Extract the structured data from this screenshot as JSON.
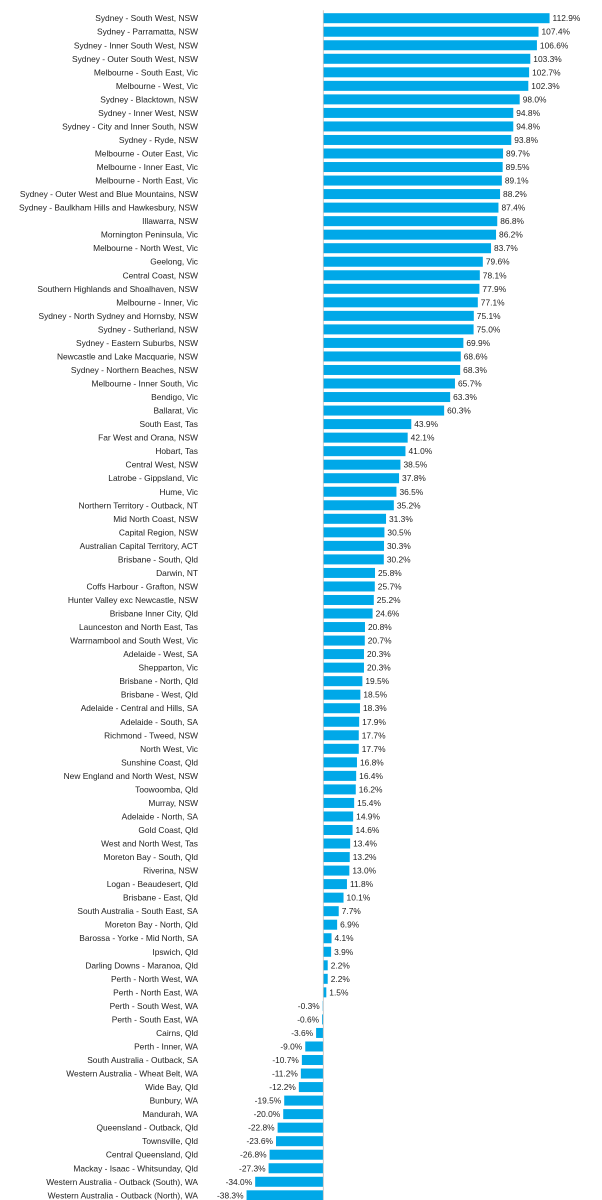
{
  "chart_data": {
    "type": "bar",
    "orientation": "horizontal",
    "bar_color": "#00A8E8",
    "grid": false,
    "legend": "none",
    "xlim": [
      -40,
      120
    ],
    "categories": [
      "Sydney - South West, NSW",
      "Sydney - Parramatta, NSW",
      "Sydney - Inner South West, NSW",
      "Sydney - Outer South West, NSW",
      "Melbourne - South East, Vic",
      "Melbourne - West, Vic",
      "Sydney - Blacktown, NSW",
      "Sydney - Inner West, NSW",
      "Sydney - City and Inner South, NSW",
      "Sydney - Ryde, NSW",
      "Melbourne - Outer East, Vic",
      "Melbourne - Inner East, Vic",
      "Melbourne - North East, Vic",
      "Sydney - Outer West and Blue Mountains, NSW",
      "Sydney - Baulkham Hills and Hawkesbury, NSW",
      "Illawarra, NSW",
      "Mornington Peninsula, Vic",
      "Melbourne - North West, Vic",
      "Geelong, Vic",
      "Central Coast, NSW",
      "Southern Highlands and Shoalhaven, NSW",
      "Melbourne - Inner, Vic",
      "Sydney - North Sydney and Hornsby, NSW",
      "Sydney - Sutherland, NSW",
      "Sydney - Eastern Suburbs, NSW",
      "Newcastle and Lake Macquarie, NSW",
      "Sydney - Northern Beaches, NSW",
      "Melbourne - Inner South, Vic",
      "Bendigo, Vic",
      "Ballarat, Vic",
      "South East, Tas",
      "Far West and Orana, NSW",
      "Hobart, Tas",
      "Central West, NSW",
      "Latrobe - Gippsland, Vic",
      "Hume, Vic",
      "Northern Territory - Outback, NT",
      "Mid North Coast, NSW",
      "Capital Region, NSW",
      "Australian Capital Territory, ACT",
      "Brisbane - South, Qld",
      "Darwin, NT",
      "Coffs Harbour - Grafton, NSW",
      "Hunter Valley exc Newcastle, NSW",
      "Brisbane Inner City, Qld",
      "Launceston and North East, Tas",
      "Warrnambool and South West, Vic",
      "Adelaide - West, SA",
      "Shepparton, Vic",
      "Brisbane - North, Qld",
      "Brisbane - West, Qld",
      "Adelaide - Central and Hills, SA",
      "Adelaide - South, SA",
      "Richmond - Tweed, NSW",
      "North West, Vic",
      "Sunshine Coast, Qld",
      "New England and North West, NSW",
      "Toowoomba, Qld",
      "Murray, NSW",
      "Adelaide - North, SA",
      "Gold Coast, Qld",
      "West and North West, Tas",
      "Moreton Bay - South, Qld",
      "Riverina, NSW",
      "Logan - Beaudesert, Qld",
      "Brisbane - East, Qld",
      "South Australia - South East, SA",
      "Moreton Bay - North, Qld",
      "Barossa - Yorke - Mid North, SA",
      "Ipswich, Qld",
      "Darling Downs - Maranoa, Qld",
      "Perth - North West, WA",
      "Perth - North East, WA",
      "Perth - South West, WA",
      "Perth - South East, WA",
      "Cairns, Qld",
      "Perth - Inner, WA",
      "South Australia - Outback, SA",
      "Western Australia - Wheat Belt, WA",
      "Wide Bay, Qld",
      "Bunbury, WA",
      "Mandurah, WA",
      "Queensland - Outback, Qld",
      "Townsville, Qld",
      "Central Queensland, Qld",
      "Mackay - Isaac - Whitsunday, Qld",
      "Western Australia - Outback (South), WA",
      "Western Australia - Outback (North), WA"
    ],
    "values": [
      112.9,
      107.4,
      106.6,
      103.3,
      102.7,
      102.3,
      98.0,
      94.8,
      94.8,
      93.8,
      89.7,
      89.5,
      89.1,
      88.2,
      87.4,
      86.8,
      86.2,
      83.7,
      79.6,
      78.1,
      77.9,
      77.1,
      75.1,
      75.0,
      69.9,
      68.6,
      68.3,
      65.7,
      63.3,
      60.3,
      43.9,
      42.1,
      41.0,
      38.5,
      37.8,
      36.5,
      35.2,
      31.3,
      30.5,
      30.3,
      30.2,
      25.8,
      25.7,
      25.2,
      24.6,
      20.8,
      20.7,
      20.3,
      20.3,
      19.5,
      18.5,
      18.3,
      17.9,
      17.7,
      17.7,
      16.8,
      16.4,
      16.2,
      15.4,
      14.9,
      14.6,
      13.4,
      13.2,
      13.0,
      11.8,
      10.1,
      7.7,
      6.9,
      4.1,
      3.9,
      2.2,
      2.2,
      1.5,
      -0.3,
      -0.6,
      -3.6,
      -9.0,
      -10.7,
      -11.2,
      -12.2,
      -19.5,
      -20.0,
      -22.8,
      -23.6,
      -26.8,
      -27.3,
      -34.0,
      -38.3
    ],
    "value_labels": [
      "112.9%",
      "107.4%",
      "106.6%",
      "103.3%",
      "102.7%",
      "102.3%",
      "98.0%",
      "94.8%",
      "94.8%",
      "93.8%",
      "89.7%",
      "89.5%",
      "89.1%",
      "88.2%",
      "87.4%",
      "86.8%",
      "86.2%",
      "83.7%",
      "79.6%",
      "78.1%",
      "77.9%",
      "77.1%",
      "75.1%",
      "75.0%",
      "69.9%",
      "68.6%",
      "68.3%",
      "65.7%",
      "63.3%",
      "60.3%",
      "43.9%",
      "42.1%",
      "41.0%",
      "38.5%",
      "37.8%",
      "36.5%",
      "35.2%",
      "31.3%",
      "30.5%",
      "30.3%",
      "30.2%",
      "25.8%",
      "25.7%",
      "25.2%",
      "24.6%",
      "20.8%",
      "20.7%",
      "20.3%",
      "20.3%",
      "19.5%",
      "18.5%",
      "18.3%",
      "17.9%",
      "17.7%",
      "17.7%",
      "16.8%",
      "16.4%",
      "16.2%",
      "15.4%",
      "14.9%",
      "14.6%",
      "13.4%",
      "13.2%",
      "13.0%",
      "11.8%",
      "10.1%",
      "7.7%",
      "6.9%",
      "4.1%",
      "3.9%",
      "2.2%",
      "2.2%",
      "1.5%",
      "-0.3%",
      "-0.6%",
      "-3.6%",
      "-9.0%",
      "-10.7%",
      "-11.2%",
      "-12.2%",
      "-19.5%",
      "-20.0%",
      "-22.8%",
      "-23.6%",
      "-26.8%",
      "-27.3%",
      "-34.0%",
      "-38.3%"
    ]
  }
}
